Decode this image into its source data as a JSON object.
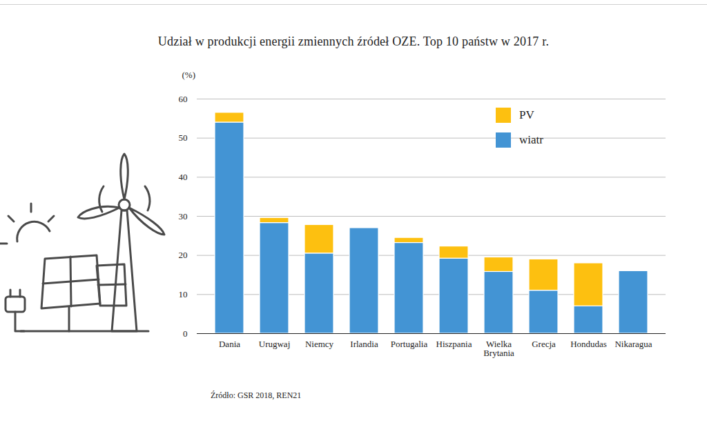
{
  "chart_data": {
    "type": "bar",
    "stacked": true,
    "title": "Udział w produkcji energii zmiennych źródeł OZE. Top 10 państw w 2017 r.",
    "y_label": "(%)",
    "categories": [
      "Dania",
      "Urugwaj",
      "Niemcy",
      "Irlandia",
      "Portugalia",
      "Hiszpania",
      "Wielka Brytania",
      "Grecja",
      "Hondudas",
      "Nikaragua"
    ],
    "series": [
      {
        "name": "PV",
        "color": "#fdc010",
        "values": [
          2.5,
          1.3,
          7.3,
          0,
          1.3,
          3.1,
          3.7,
          8,
          11,
          0
        ]
      },
      {
        "name": "wiatr",
        "color": "#4394d4",
        "values": [
          54,
          28.3,
          20.5,
          27,
          23.2,
          19.2,
          15.8,
          11,
          7,
          16
        ]
      }
    ],
    "ylim": [
      0,
      60
    ],
    "yticks": [
      0,
      10,
      20,
      30,
      40,
      50,
      60
    ],
    "grid": true,
    "legend": "top-right",
    "source": "Źródło: GSR 2018, REN21"
  }
}
